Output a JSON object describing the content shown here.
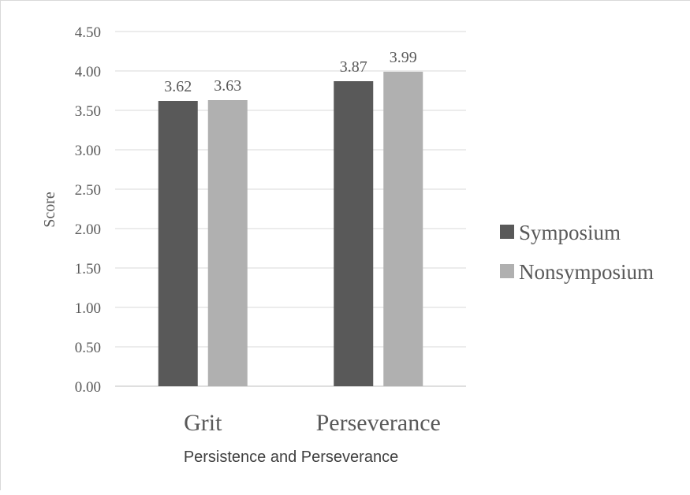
{
  "chart_data": {
    "type": "bar",
    "categories": [
      "Grit",
      "Perseverance"
    ],
    "series": [
      {
        "name": "Symposium",
        "values": [
          3.62,
          3.87
        ],
        "color": "#595959"
      },
      {
        "name": "Nonsymposium",
        "values": [
          3.63,
          3.99
        ],
        "color": "#b0b0b0"
      }
    ],
    "data_labels": [
      [
        "3.62",
        "3.87"
      ],
      [
        "3.63",
        "3.99"
      ]
    ],
    "title": "",
    "xlabel": "Persistence and Perseverance",
    "ylabel": "Score",
    "ylim": [
      0,
      4.5
    ],
    "yticks": [
      "0.00",
      "0.50",
      "1.00",
      "1.50",
      "2.00",
      "2.50",
      "3.00",
      "3.50",
      "4.00",
      "4.50"
    ],
    "grid": true,
    "legend_position": "right"
  }
}
